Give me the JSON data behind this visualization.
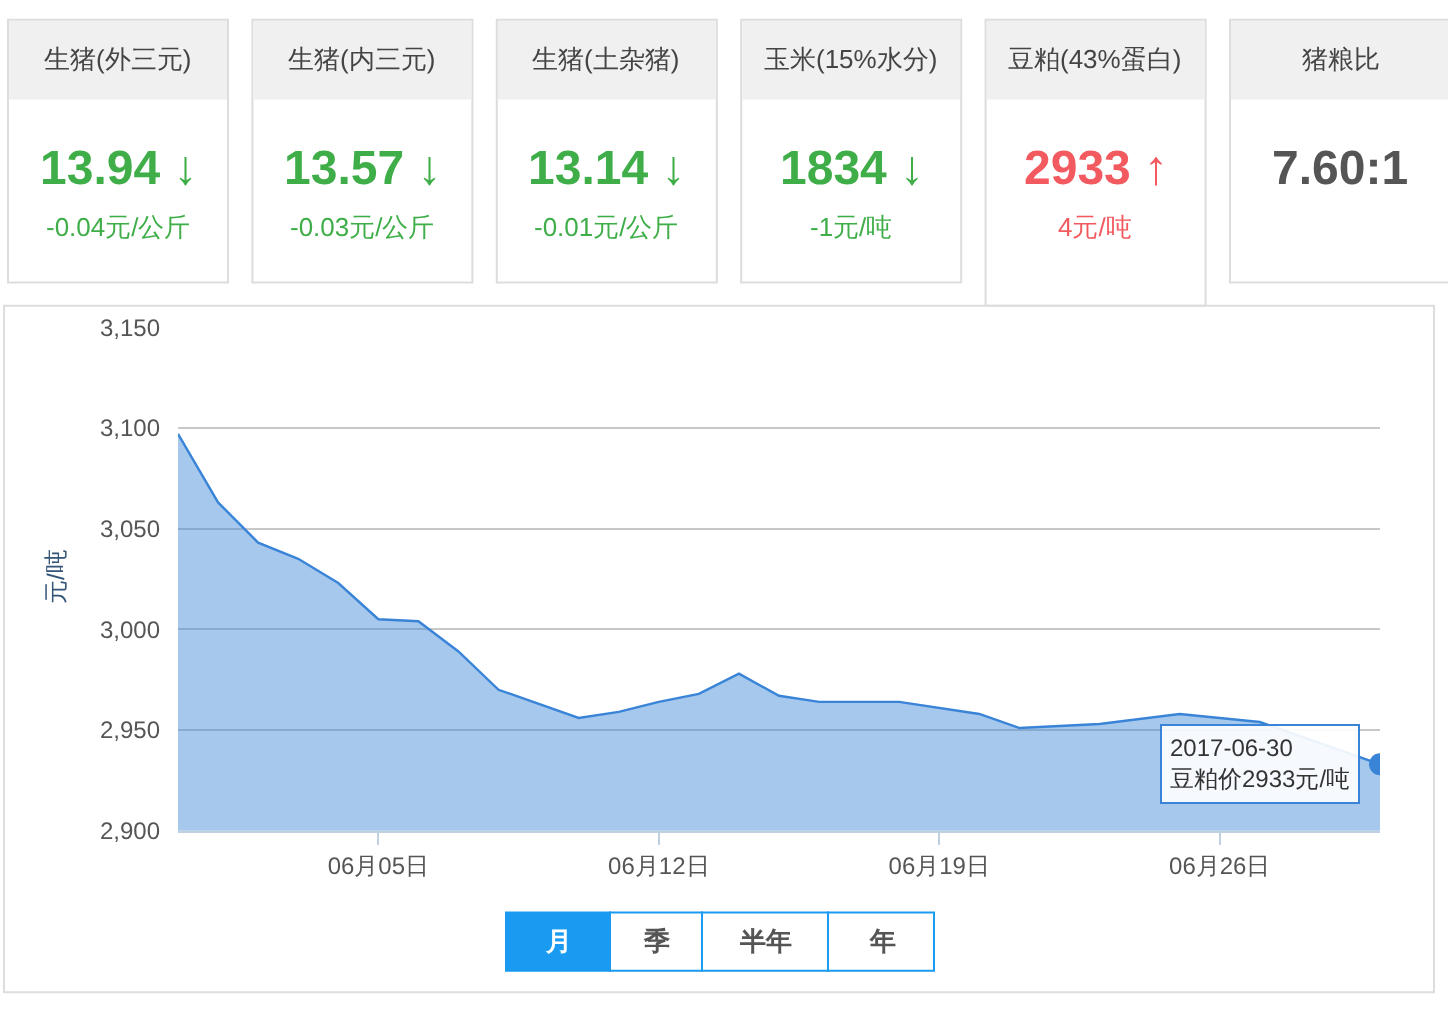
{
  "chart_data": [
    {
      "type": "other",
      "title": "生猪(外三元)",
      "annotations": [
        "13.94 ↓",
        "-0.04元/公斤"
      ],
      "color": "#3fae49"
    },
    {
      "type": "other",
      "title": "生猪(内三元)",
      "annotations": [
        "13.57 ↓",
        "-0.03元/公斤"
      ],
      "color": "#3fae49"
    },
    {
      "type": "other",
      "title": "生猪(土杂猪)",
      "annotations": [
        "13.14 ↓",
        "-0.01元/公斤"
      ],
      "color": "#3fae49"
    },
    {
      "type": "other",
      "title": "玉米(15%水分)",
      "annotations": [
        "1834 ↓",
        "-1元/吨"
      ],
      "color": "#3fae49"
    },
    {
      "type": "other",
      "title": "豆粕(43%蛋白)",
      "annotations": [
        "2933 ↑",
        "4元/吨"
      ],
      "color": "#f25a5f"
    },
    {
      "type": "other",
      "title": "猪粮比",
      "annotations": [
        "7.60:1"
      ],
      "color": "#555555"
    },
    {
      "type": "area",
      "ylabel": "元/吨",
      "color": "#3a84d8",
      "grid": "y",
      "x": [
        "2017-05-31",
        "2017-06-01",
        "2017-06-02",
        "2017-06-03",
        "2017-06-04",
        "2017-06-05",
        "2017-06-06",
        "2017-06-07",
        "2017-06-08",
        "2017-06-10",
        "2017-06-11",
        "2017-06-12",
        "2017-06-13",
        "2017-06-14",
        "2017-06-15",
        "2017-06-16",
        "2017-06-18",
        "2017-06-20",
        "2017-06-21",
        "2017-06-23",
        "2017-06-25",
        "2017-06-27",
        "2017-06-30"
      ],
      "values": [
        3097,
        3063,
        3043,
        3035,
        3023,
        3005,
        3004,
        2989,
        2970,
        2956,
        2959,
        2964,
        2968,
        2978,
        2967,
        2964,
        2964,
        2958,
        2951,
        2953,
        2958,
        2954,
        2933
      ],
      "xlim": [
        "2017-05-31",
        "2017-06-30"
      ],
      "xticks": [
        {
          "value": "2017-06-05",
          "label": "06月05日"
        },
        {
          "value": "2017-06-12",
          "label": "06月12日"
        },
        {
          "value": "2017-06-19",
          "label": "06月19日"
        },
        {
          "value": "2017-06-26",
          "label": "06月26日"
        }
      ],
      "ylim": [
        2900,
        3150
      ],
      "yticks": [
        {
          "value": 2900,
          "label": "2,900"
        },
        {
          "value": 2950,
          "label": "2,950"
        },
        {
          "value": 3000,
          "label": "3,000"
        },
        {
          "value": 3050,
          "label": "3,050"
        },
        {
          "value": 3100,
          "label": "3,100"
        },
        {
          "value": 3150,
          "label": "3,150"
        }
      ],
      "annotations": [
        {
          "text": "2017-06-30\n豆粕价2933元/吨",
          "x": "2017-06-30",
          "y": 2933
        }
      ]
    },
    {
      "type": "other",
      "annotations": [
        "月",
        "季",
        "半年",
        "年"
      ]
    }
  ]
}
